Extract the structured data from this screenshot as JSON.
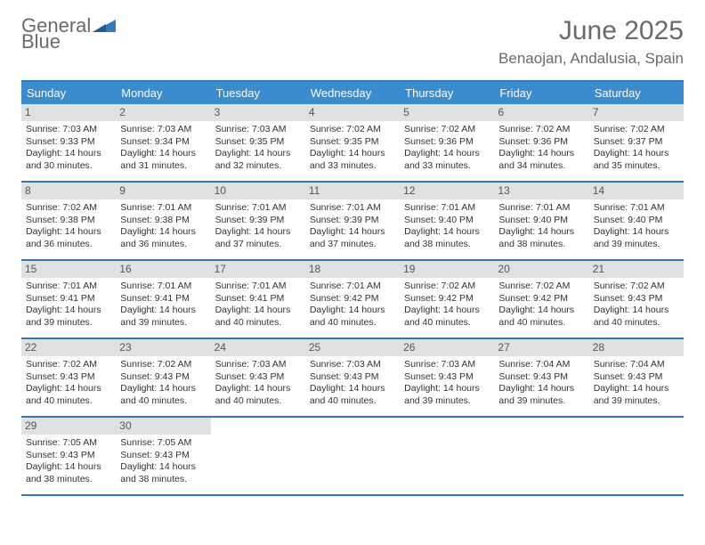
{
  "logo": {
    "textGray": "General",
    "textBlue": "Blue"
  },
  "title": "June 2025",
  "location": "Benaojan, Andalusia, Spain",
  "dayNames": [
    "Sunday",
    "Monday",
    "Tuesday",
    "Wednesday",
    "Thursday",
    "Friday",
    "Saturday"
  ],
  "colors": {
    "headerBlue": "#3a8bd0",
    "borderBlue": "#2f7bbf",
    "dayNumBg": "#e1e1e1",
    "textGray": "#6a6a6a"
  },
  "weeks": [
    [
      {
        "n": "1",
        "sr": "Sunrise: 7:03 AM",
        "ss": "Sunset: 9:33 PM",
        "d1": "Daylight: 14 hours",
        "d2": "and 30 minutes."
      },
      {
        "n": "2",
        "sr": "Sunrise: 7:03 AM",
        "ss": "Sunset: 9:34 PM",
        "d1": "Daylight: 14 hours",
        "d2": "and 31 minutes."
      },
      {
        "n": "3",
        "sr": "Sunrise: 7:03 AM",
        "ss": "Sunset: 9:35 PM",
        "d1": "Daylight: 14 hours",
        "d2": "and 32 minutes."
      },
      {
        "n": "4",
        "sr": "Sunrise: 7:02 AM",
        "ss": "Sunset: 9:35 PM",
        "d1": "Daylight: 14 hours",
        "d2": "and 33 minutes."
      },
      {
        "n": "5",
        "sr": "Sunrise: 7:02 AM",
        "ss": "Sunset: 9:36 PM",
        "d1": "Daylight: 14 hours",
        "d2": "and 33 minutes."
      },
      {
        "n": "6",
        "sr": "Sunrise: 7:02 AM",
        "ss": "Sunset: 9:36 PM",
        "d1": "Daylight: 14 hours",
        "d2": "and 34 minutes."
      },
      {
        "n": "7",
        "sr": "Sunrise: 7:02 AM",
        "ss": "Sunset: 9:37 PM",
        "d1": "Daylight: 14 hours",
        "d2": "and 35 minutes."
      }
    ],
    [
      {
        "n": "8",
        "sr": "Sunrise: 7:02 AM",
        "ss": "Sunset: 9:38 PM",
        "d1": "Daylight: 14 hours",
        "d2": "and 36 minutes."
      },
      {
        "n": "9",
        "sr": "Sunrise: 7:01 AM",
        "ss": "Sunset: 9:38 PM",
        "d1": "Daylight: 14 hours",
        "d2": "and 36 minutes."
      },
      {
        "n": "10",
        "sr": "Sunrise: 7:01 AM",
        "ss": "Sunset: 9:39 PM",
        "d1": "Daylight: 14 hours",
        "d2": "and 37 minutes."
      },
      {
        "n": "11",
        "sr": "Sunrise: 7:01 AM",
        "ss": "Sunset: 9:39 PM",
        "d1": "Daylight: 14 hours",
        "d2": "and 37 minutes."
      },
      {
        "n": "12",
        "sr": "Sunrise: 7:01 AM",
        "ss": "Sunset: 9:40 PM",
        "d1": "Daylight: 14 hours",
        "d2": "and 38 minutes."
      },
      {
        "n": "13",
        "sr": "Sunrise: 7:01 AM",
        "ss": "Sunset: 9:40 PM",
        "d1": "Daylight: 14 hours",
        "d2": "and 38 minutes."
      },
      {
        "n": "14",
        "sr": "Sunrise: 7:01 AM",
        "ss": "Sunset: 9:40 PM",
        "d1": "Daylight: 14 hours",
        "d2": "and 39 minutes."
      }
    ],
    [
      {
        "n": "15",
        "sr": "Sunrise: 7:01 AM",
        "ss": "Sunset: 9:41 PM",
        "d1": "Daylight: 14 hours",
        "d2": "and 39 minutes."
      },
      {
        "n": "16",
        "sr": "Sunrise: 7:01 AM",
        "ss": "Sunset: 9:41 PM",
        "d1": "Daylight: 14 hours",
        "d2": "and 39 minutes."
      },
      {
        "n": "17",
        "sr": "Sunrise: 7:01 AM",
        "ss": "Sunset: 9:41 PM",
        "d1": "Daylight: 14 hours",
        "d2": "and 40 minutes."
      },
      {
        "n": "18",
        "sr": "Sunrise: 7:01 AM",
        "ss": "Sunset: 9:42 PM",
        "d1": "Daylight: 14 hours",
        "d2": "and 40 minutes."
      },
      {
        "n": "19",
        "sr": "Sunrise: 7:02 AM",
        "ss": "Sunset: 9:42 PM",
        "d1": "Daylight: 14 hours",
        "d2": "and 40 minutes."
      },
      {
        "n": "20",
        "sr": "Sunrise: 7:02 AM",
        "ss": "Sunset: 9:42 PM",
        "d1": "Daylight: 14 hours",
        "d2": "and 40 minutes."
      },
      {
        "n": "21",
        "sr": "Sunrise: 7:02 AM",
        "ss": "Sunset: 9:43 PM",
        "d1": "Daylight: 14 hours",
        "d2": "and 40 minutes."
      }
    ],
    [
      {
        "n": "22",
        "sr": "Sunrise: 7:02 AM",
        "ss": "Sunset: 9:43 PM",
        "d1": "Daylight: 14 hours",
        "d2": "and 40 minutes."
      },
      {
        "n": "23",
        "sr": "Sunrise: 7:02 AM",
        "ss": "Sunset: 9:43 PM",
        "d1": "Daylight: 14 hours",
        "d2": "and 40 minutes."
      },
      {
        "n": "24",
        "sr": "Sunrise: 7:03 AM",
        "ss": "Sunset: 9:43 PM",
        "d1": "Daylight: 14 hours",
        "d2": "and 40 minutes."
      },
      {
        "n": "25",
        "sr": "Sunrise: 7:03 AM",
        "ss": "Sunset: 9:43 PM",
        "d1": "Daylight: 14 hours",
        "d2": "and 40 minutes."
      },
      {
        "n": "26",
        "sr": "Sunrise: 7:03 AM",
        "ss": "Sunset: 9:43 PM",
        "d1": "Daylight: 14 hours",
        "d2": "and 39 minutes."
      },
      {
        "n": "27",
        "sr": "Sunrise: 7:04 AM",
        "ss": "Sunset: 9:43 PM",
        "d1": "Daylight: 14 hours",
        "d2": "and 39 minutes."
      },
      {
        "n": "28",
        "sr": "Sunrise: 7:04 AM",
        "ss": "Sunset: 9:43 PM",
        "d1": "Daylight: 14 hours",
        "d2": "and 39 minutes."
      }
    ],
    [
      {
        "n": "29",
        "sr": "Sunrise: 7:05 AM",
        "ss": "Sunset: 9:43 PM",
        "d1": "Daylight: 14 hours",
        "d2": "and 38 minutes."
      },
      {
        "n": "30",
        "sr": "Sunrise: 7:05 AM",
        "ss": "Sunset: 9:43 PM",
        "d1": "Daylight: 14 hours",
        "d2": "and 38 minutes."
      },
      null,
      null,
      null,
      null,
      null
    ]
  ]
}
